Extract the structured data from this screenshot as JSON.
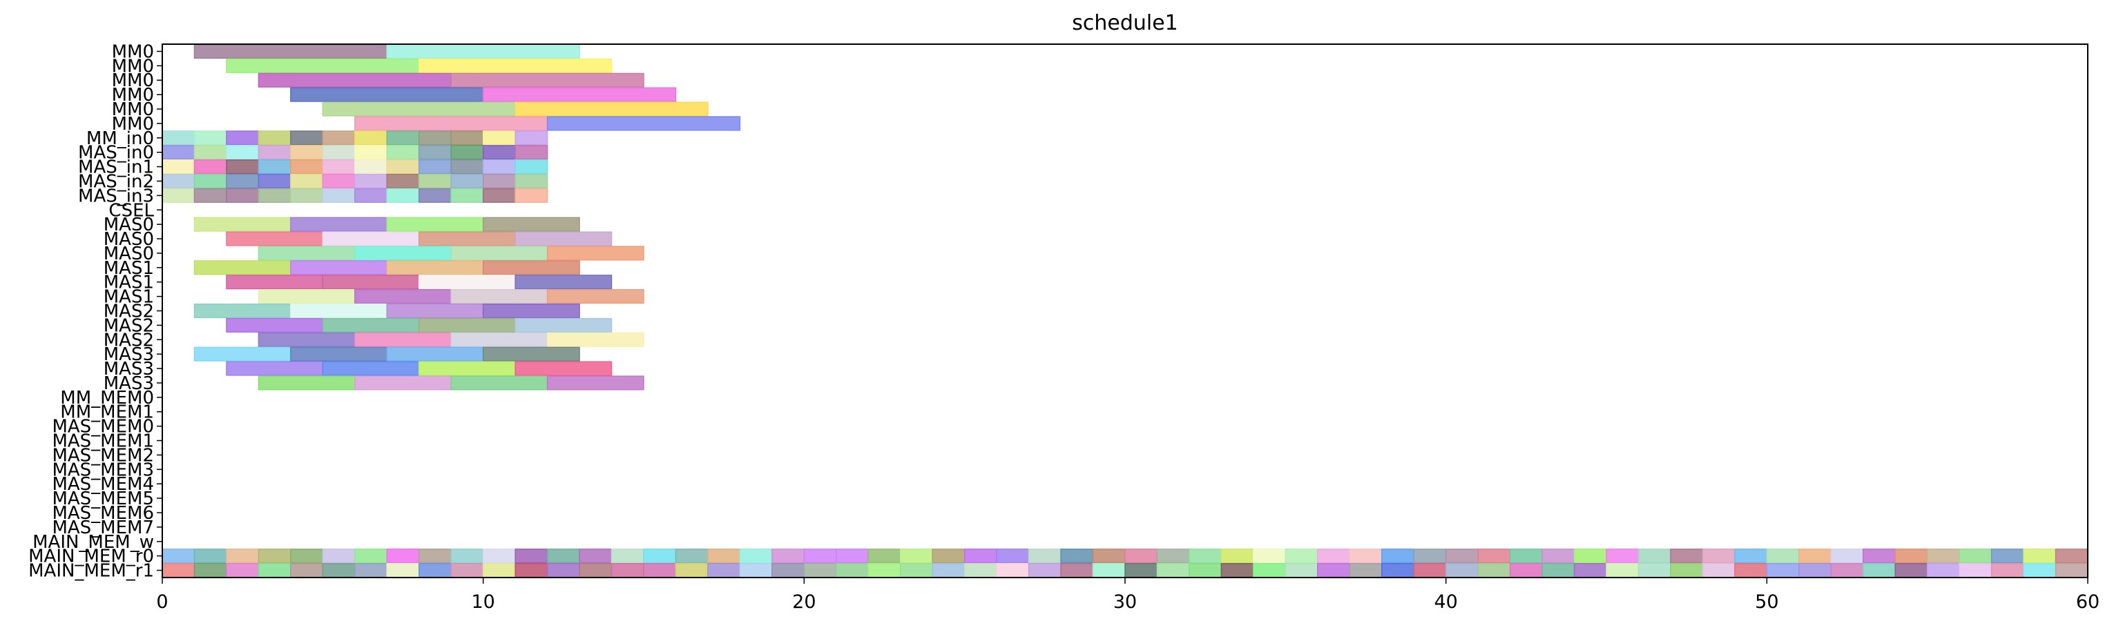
{
  "chart_data": {
    "type": "gantt",
    "title": "schedule1",
    "xlim": [
      0,
      60
    ],
    "x_ticks": [
      0,
      10,
      20,
      30,
      40,
      50,
      60
    ],
    "rows": [
      "MM0",
      "MM0",
      "MM0",
      "MM0",
      "MM0",
      "MM0",
      "MM_in0",
      "MAS_in0",
      "MAS_in1",
      "MAS_in2",
      "MAS_in3",
      "CSEL",
      "MAS0",
      "MAS0",
      "MAS0",
      "MAS1",
      "MAS1",
      "MAS1",
      "MAS2",
      "MAS2",
      "MAS2",
      "MAS3",
      "MAS3",
      "MAS3",
      "MM_MEM0",
      "MM_MEM1",
      "MAS_MEM0",
      "MAS_MEM1",
      "MAS_MEM2",
      "MAS_MEM3",
      "MAS_MEM4",
      "MAS_MEM5",
      "MAS_MEM6",
      "MAS_MEM7",
      "MAIN_MEM_w",
      "MAIN_MEM_r0",
      "MAIN_MEM_r1"
    ],
    "bars": [
      [
        0,
        1,
        7,
        "#9c7c98"
      ],
      [
        0,
        7,
        13,
        "#9cf2e0"
      ],
      [
        1,
        2,
        8,
        "#9cf07e"
      ],
      [
        1,
        8,
        14,
        "#fef26a"
      ],
      [
        2,
        3,
        9,
        "#c060c0"
      ],
      [
        2,
        9,
        15,
        "#cc7ca4"
      ],
      [
        3,
        4,
        10,
        "#5870c0"
      ],
      [
        3,
        10,
        16,
        "#f070e0"
      ],
      [
        4,
        5,
        11,
        "#b0d890"
      ],
      [
        4,
        11,
        17,
        "#fedc50"
      ],
      [
        5,
        6,
        12,
        "#f39ab8"
      ],
      [
        5,
        12,
        18,
        "#7c88f0"
      ],
      [
        6,
        0,
        1,
        "#9ce0d8"
      ],
      [
        6,
        1,
        2,
        "#a8f0c8"
      ],
      [
        6,
        2,
        3,
        "#a070e8"
      ],
      [
        6,
        3,
        4,
        "#c0d070"
      ],
      [
        6,
        4,
        5,
        "#707880"
      ],
      [
        6,
        5,
        6,
        "#c8a080"
      ],
      [
        6,
        6,
        7,
        "#e8e060"
      ],
      [
        6,
        7,
        8,
        "#70b890"
      ],
      [
        6,
        8,
        9,
        "#909880"
      ],
      [
        6,
        9,
        10,
        "#a09070"
      ],
      [
        6,
        10,
        11,
        "#f8f090"
      ],
      [
        6,
        11,
        12,
        "#c8a0f0"
      ],
      [
        7,
        0,
        1,
        "#9090e8"
      ],
      [
        7,
        1,
        2,
        "#b0e0a0"
      ],
      [
        7,
        2,
        3,
        "#a0f0f0"
      ],
      [
        7,
        3,
        4,
        "#d0a0d8"
      ],
      [
        7,
        4,
        5,
        "#f0c890"
      ],
      [
        7,
        5,
        6,
        "#d0e0d0"
      ],
      [
        7,
        6,
        7,
        "#f8f8b0"
      ],
      [
        7,
        7,
        8,
        "#a0e8a0"
      ],
      [
        7,
        8,
        9,
        "#80a0b0"
      ],
      [
        7,
        9,
        10,
        "#60a070"
      ],
      [
        7,
        10,
        11,
        "#8060c0"
      ],
      [
        7,
        11,
        12,
        "#c070b0"
      ],
      [
        8,
        0,
        1,
        "#f8f0b0"
      ],
      [
        8,
        1,
        2,
        "#f070c0"
      ],
      [
        8,
        2,
        3,
        "#906070"
      ],
      [
        8,
        3,
        4,
        "#70b8e0"
      ],
      [
        8,
        4,
        5,
        "#e8a070"
      ],
      [
        8,
        5,
        6,
        "#f0b0d8"
      ],
      [
        8,
        6,
        7,
        "#f0f0d0"
      ],
      [
        8,
        7,
        8,
        "#e8d890"
      ],
      [
        8,
        8,
        9,
        "#80a0d8"
      ],
      [
        8,
        9,
        10,
        "#8090a0"
      ],
      [
        8,
        10,
        11,
        "#b0b0f0"
      ],
      [
        8,
        11,
        12,
        "#70e0e8"
      ],
      [
        9,
        0,
        1,
        "#b0c8e0"
      ],
      [
        9,
        1,
        2,
        "#80d8a0"
      ],
      [
        9,
        2,
        3,
        "#7090c0"
      ],
      [
        9,
        3,
        4,
        "#7070d8"
      ],
      [
        9,
        4,
        5,
        "#e0e090"
      ],
      [
        9,
        5,
        6,
        "#f080d0"
      ],
      [
        9,
        6,
        7,
        "#c8a8e8"
      ],
      [
        9,
        7,
        8,
        "#a07870"
      ],
      [
        9,
        8,
        9,
        "#a8d090"
      ],
      [
        9,
        9,
        10,
        "#90b0d0"
      ],
      [
        9,
        10,
        11,
        "#b090b0"
      ],
      [
        9,
        11,
        12,
        "#a0d0a0"
      ],
      [
        10,
        0,
        1,
        "#d0e8b0"
      ],
      [
        10,
        1,
        2,
        "#a08898"
      ],
      [
        10,
        2,
        3,
        "#a07898"
      ],
      [
        10,
        3,
        4,
        "#a0b890"
      ],
      [
        10,
        4,
        5,
        "#b0d0a0"
      ],
      [
        10,
        5,
        6,
        "#b8d0e8"
      ],
      [
        10,
        6,
        7,
        "#a888e0"
      ],
      [
        10,
        7,
        8,
        "#90f0d8"
      ],
      [
        10,
        8,
        9,
        "#8080b8"
      ],
      [
        10,
        9,
        10,
        "#90e0a0"
      ],
      [
        10,
        10,
        11,
        "#a07080"
      ],
      [
        10,
        11,
        12,
        "#f8b098"
      ],
      [
        12,
        1,
        4,
        "#cce88c"
      ],
      [
        12,
        4,
        7,
        "#9c80d8"
      ],
      [
        12,
        7,
        10,
        "#9cee7c"
      ],
      [
        12,
        10,
        13,
        "#a09c80"
      ],
      [
        13,
        2,
        5,
        "#f07890"
      ],
      [
        13,
        5,
        8,
        "#f0d8f0"
      ],
      [
        13,
        8,
        11,
        "#d89880"
      ],
      [
        13,
        11,
        14,
        "#c8a8d0"
      ],
      [
        14,
        3,
        6,
        "#98e0a8"
      ],
      [
        14,
        6,
        9,
        "#70f0d8"
      ],
      [
        14,
        9,
        12,
        "#b0e0b0"
      ],
      [
        14,
        12,
        15,
        "#f0a078"
      ],
      [
        15,
        1,
        4,
        "#c0e060"
      ],
      [
        15,
        4,
        7,
        "#c080f0"
      ],
      [
        15,
        7,
        10,
        "#e8b880"
      ],
      [
        15,
        10,
        13,
        "#d88870"
      ],
      [
        16,
        2,
        5,
        "#d860a0"
      ],
      [
        16,
        5,
        8,
        "#d06098"
      ],
      [
        16,
        8,
        11,
        "#f8f0f0"
      ],
      [
        16,
        11,
        14,
        "#7870c0"
      ],
      [
        17,
        3,
        6,
        "#e0f0b0"
      ],
      [
        17,
        6,
        9,
        "#b870c8"
      ],
      [
        17,
        9,
        12,
        "#d8c8d0"
      ],
      [
        17,
        12,
        15,
        "#e8a080"
      ],
      [
        18,
        1,
        4,
        "#88d0c0"
      ],
      [
        18,
        4,
        7,
        "#d8f8f0"
      ],
      [
        18,
        7,
        10,
        "#b888d8"
      ],
      [
        18,
        10,
        13,
        "#8868c8"
      ],
      [
        19,
        2,
        5,
        "#b070e8"
      ],
      [
        19,
        5,
        8,
        "#78c0a0"
      ],
      [
        19,
        8,
        11,
        "#98b080"
      ],
      [
        19,
        11,
        14,
        "#a8c8e0"
      ],
      [
        20,
        3,
        6,
        "#8878c8"
      ],
      [
        20,
        6,
        9,
        "#f088c0"
      ],
      [
        20,
        9,
        12,
        "#d0d0e0"
      ],
      [
        20,
        12,
        15,
        "#f8f0b0"
      ],
      [
        21,
        1,
        4,
        "#80d8f8"
      ],
      [
        21,
        4,
        7,
        "#6080c0"
      ],
      [
        21,
        7,
        10,
        "#70b0f0"
      ],
      [
        21,
        10,
        13,
        "#708880"
      ],
      [
        22,
        2,
        5,
        "#a080f0"
      ],
      [
        22,
        5,
        8,
        "#6088f0"
      ],
      [
        22,
        8,
        11,
        "#b8f060"
      ],
      [
        22,
        11,
        14,
        "#f06090"
      ],
      [
        23,
        3,
        6,
        "#88e070"
      ],
      [
        23,
        6,
        9,
        "#d8a0d8"
      ],
      [
        23,
        9,
        12,
        "#80d090"
      ],
      [
        23,
        12,
        15,
        "#c078c8"
      ]
    ],
    "mem_colors_r0": [
      "#80b8f0",
      "#70b8b8",
      "#e8b890",
      "#b0b870",
      "#88b070",
      "#c8c0e8",
      "#90e890",
      "#f070f0",
      "#b0a090",
      "#90d0d0",
      "#d8d8f0",
      "#a060b8",
      "#70b0a0",
      "#b070c0",
      "#b8e0c8",
      "#70e0f0",
      "#80b8b0",
      "#e0b080",
      "#90f0e0",
      "#d090d8",
      "#d080f8",
      "#d080f8",
      "#90c070",
      "#b8f080",
      "#b0a070",
      "#c070f0",
      "#a080f0",
      "#b8d8c8",
      "#6090b0",
      "#c08870",
      "#e080a0",
      "#a0b0a0",
      "#90e0a0",
      "#d0e860",
      "#f0f8c0",
      "#b0f0b0",
      "#f0a8e0",
      "#f8c0c0",
      "#60a0f0",
      "#90a0b0",
      "#b090a8",
      "#e08090",
      "#70c8a0",
      "#c890d0",
      "#a0f070",
      "#f080f0",
      "#a0d8c0",
      "#b07890",
      "#e0a0c0",
      "#70b8f0",
      "#a8e0b0",
      "#f0b080",
      "#d0d0f0",
      "#c070d0",
      "#e09070",
      "#c8b090",
      "#90e090",
      "#7098c8",
      "#d0f070",
      "#c08080"
    ],
    "mem_colors_r1": [
      "#f08080",
      "#70a070",
      "#e080d0",
      "#80e090",
      "#b09890",
      "#70a090",
      "#90a0c0",
      "#e8f0c0",
      "#7090e0",
      "#d090b0",
      "#e0e890",
      "#c05070",
      "#a070c8",
      "#b07880",
      "#d070a0",
      "#d070b0",
      "#d0d070",
      "#a090d8",
      "#b0d0f0",
      "#9090b0",
      "#a0b0a0",
      "#90d090",
      "#a0f080",
      "#90e090",
      "#a0c0e0",
      "#c0e0c0",
      "#f8d0e0",
      "#c0a0e0",
      "#b07090",
      "#a0f0d0",
      "#607870",
      "#a0e0a0",
      "#80e080",
      "#806060",
      "#80f080",
      "#b0e0c0",
      "#c070e0",
      "#a0a0a0",
      "#5070e0",
      "#d06080",
      "#a0b0d0",
      "#a0c890",
      "#e070c0",
      "#70b8a0",
      "#a070c8",
      "#d0f0b0",
      "#a8e0c8",
      "#90d070",
      "#e0c0e0",
      "#e07080",
      "#90a0f0",
      "#a090e0",
      "#d080c0",
      "#80d0c0",
      "#906090",
      "#c0a0f0",
      "#e8c0f0",
      "#e090b0",
      "#80e8f0",
      "#c0a0a0"
    ]
  }
}
